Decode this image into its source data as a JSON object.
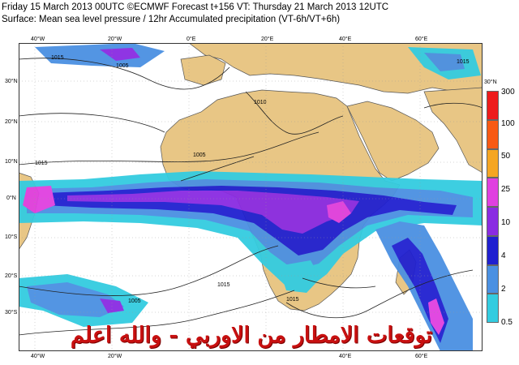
{
  "header": {
    "line1": "Friday 15 March 2013 00UTC ©ECMWF Forecast t+156 VT: Thursday 21 March 2013 12UTC",
    "line2": "Surface: Mean sea level pressure / 12hr Accumulated precipitation (VT-6h/VT+6h)"
  },
  "map": {
    "longitude_labels": [
      "40°W",
      "20°W",
      "0°E",
      "20°E",
      "40°E",
      "60°E"
    ],
    "latitude_labels": [
      "30°N",
      "20°N",
      "10°N",
      "0°N",
      "10°S",
      "20°S",
      "30°S"
    ],
    "isobar_labels": [
      "1015",
      "1005",
      "1010",
      "1005",
      "1015",
      "1005",
      "1015",
      "1015",
      "1015"
    ],
    "colors": {
      "land": "#e8c685",
      "sea": "#ffffff",
      "coast": "#555555"
    }
  },
  "legend": {
    "labels": [
      "300",
      "100",
      "50",
      "25",
      "10",
      "4",
      "2",
      "0.5"
    ],
    "colors": [
      "#ee1c1c",
      "#f85a14",
      "#f5a623",
      "#e040e0",
      "#8a2be2",
      "#2020d0",
      "#4a90e2",
      "#33cce0"
    ]
  },
  "watermark": {
    "text": "توقعات الامطار من الاوربي - والله اعلم"
  }
}
